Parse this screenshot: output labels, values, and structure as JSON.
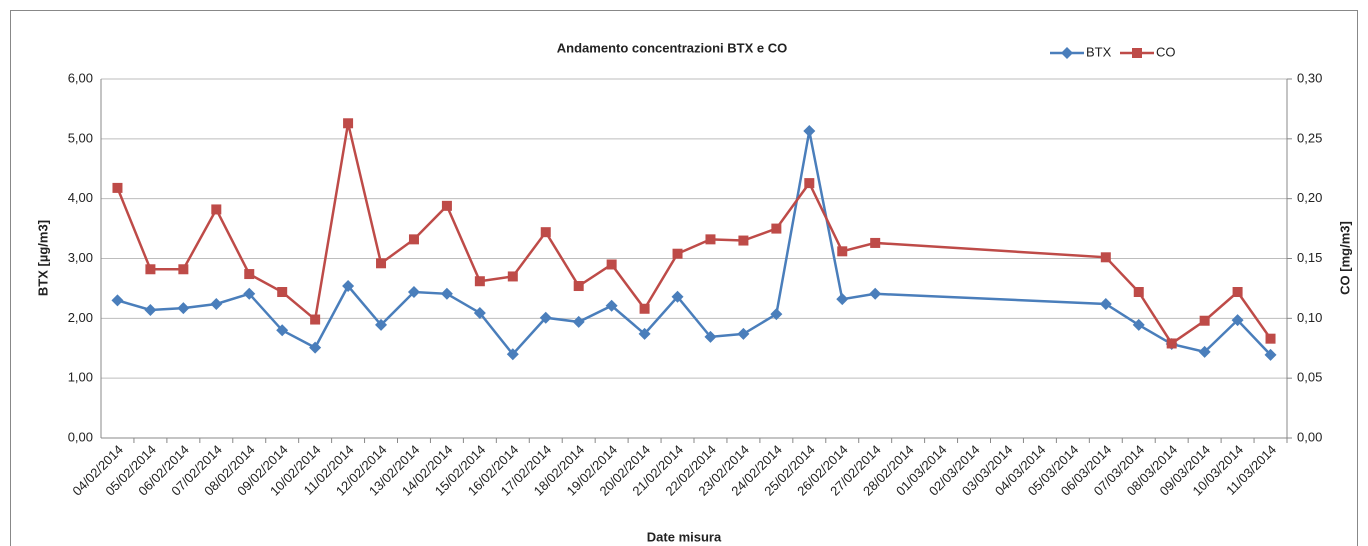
{
  "chart_data": {
    "type": "line",
    "title": "Andamento concentrazioni BTX e CO",
    "x_label": "Date misura",
    "y_label": "BTX [µg/m3]",
    "y2_label": "CO [mg/m3]",
    "legend": "top-right",
    "grid": true,
    "x": [
      "04/02/2014",
      "05/02/2014",
      "06/02/2014",
      "07/02/2014",
      "08/02/2014",
      "09/02/2014",
      "10/02/2014",
      "11/02/2014",
      "12/02/2014",
      "13/02/2014",
      "14/02/2014",
      "15/02/2014",
      "16/02/2014",
      "17/02/2014",
      "18/02/2014",
      "19/02/2014",
      "20/02/2014",
      "21/02/2014",
      "22/02/2014",
      "23/02/2014",
      "24/02/2014",
      "25/02/2014",
      "26/02/2014",
      "27/02/2014",
      "06/03/2014",
      "07/03/2014",
      "08/03/2014",
      "09/03/2014",
      "10/03/2014",
      "11/03/2014"
    ],
    "xticks": [
      "04/02/2014",
      "05/02/2014",
      "06/02/2014",
      "07/02/2014",
      "08/02/2014",
      "09/02/2014",
      "10/02/2014",
      "11/02/2014",
      "12/02/2014",
      "13/02/2014",
      "14/02/2014",
      "15/02/2014",
      "16/02/2014",
      "17/02/2014",
      "18/02/2014",
      "19/02/2014",
      "20/02/2014",
      "21/02/2014",
      "22/02/2014",
      "23/02/2014",
      "24/02/2014",
      "25/02/2014",
      "26/02/2014",
      "27/02/2014",
      "28/02/2014",
      "01/03/2014",
      "02/03/2014",
      "03/03/2014",
      "04/03/2014",
      "05/03/2014",
      "06/03/2014",
      "07/03/2014",
      "08/03/2014",
      "09/03/2014",
      "10/03/2014",
      "11/03/2014"
    ],
    "series": [
      {
        "name": "BTX",
        "color": "#4a7ebb",
        "marker": "diamond",
        "axis": "y",
        "values": [
          2.3,
          2.14,
          2.17,
          2.24,
          2.41,
          1.8,
          1.51,
          2.54,
          1.89,
          2.44,
          2.41,
          2.09,
          1.4,
          2.01,
          1.94,
          2.21,
          1.74,
          2.36,
          1.69,
          1.74,
          2.07,
          5.13,
          2.32,
          2.41,
          2.24,
          1.89,
          1.57,
          1.44,
          1.97,
          1.39
        ]
      },
      {
        "name": "CO",
        "color": "#be4b48",
        "marker": "square",
        "axis": "y2",
        "values": [
          0.209,
          0.141,
          0.141,
          0.191,
          0.137,
          0.122,
          0.099,
          0.263,
          0.146,
          0.166,
          0.194,
          0.131,
          0.135,
          0.172,
          0.127,
          0.145,
          0.108,
          0.154,
          0.166,
          0.165,
          0.175,
          0.213,
          0.156,
          0.163,
          0.151,
          0.122,
          0.079,
          0.098,
          0.122,
          0.083
        ]
      }
    ],
    "ylim": [
      0,
      6
    ],
    "yticks": [
      {
        "value": 0,
        "label": "0,00"
      },
      {
        "value": 1,
        "label": "1,00"
      },
      {
        "value": 2,
        "label": "2,00"
      },
      {
        "value": 3,
        "label": "3,00"
      },
      {
        "value": 4,
        "label": "4,00"
      },
      {
        "value": 5,
        "label": "5,00"
      },
      {
        "value": 6,
        "label": "6,00"
      }
    ],
    "y2lim": [
      0,
      0.3
    ],
    "y2ticks": [
      {
        "value": 0,
        "label": "0,00"
      },
      {
        "value": 0.05,
        "label": "0,05"
      },
      {
        "value": 0.1,
        "label": "0,10"
      },
      {
        "value": 0.15,
        "label": "0,15"
      },
      {
        "value": 0.2,
        "label": "0,20"
      },
      {
        "value": 0.25,
        "label": "0,25"
      },
      {
        "value": 0.3,
        "label": "0,30"
      }
    ]
  }
}
